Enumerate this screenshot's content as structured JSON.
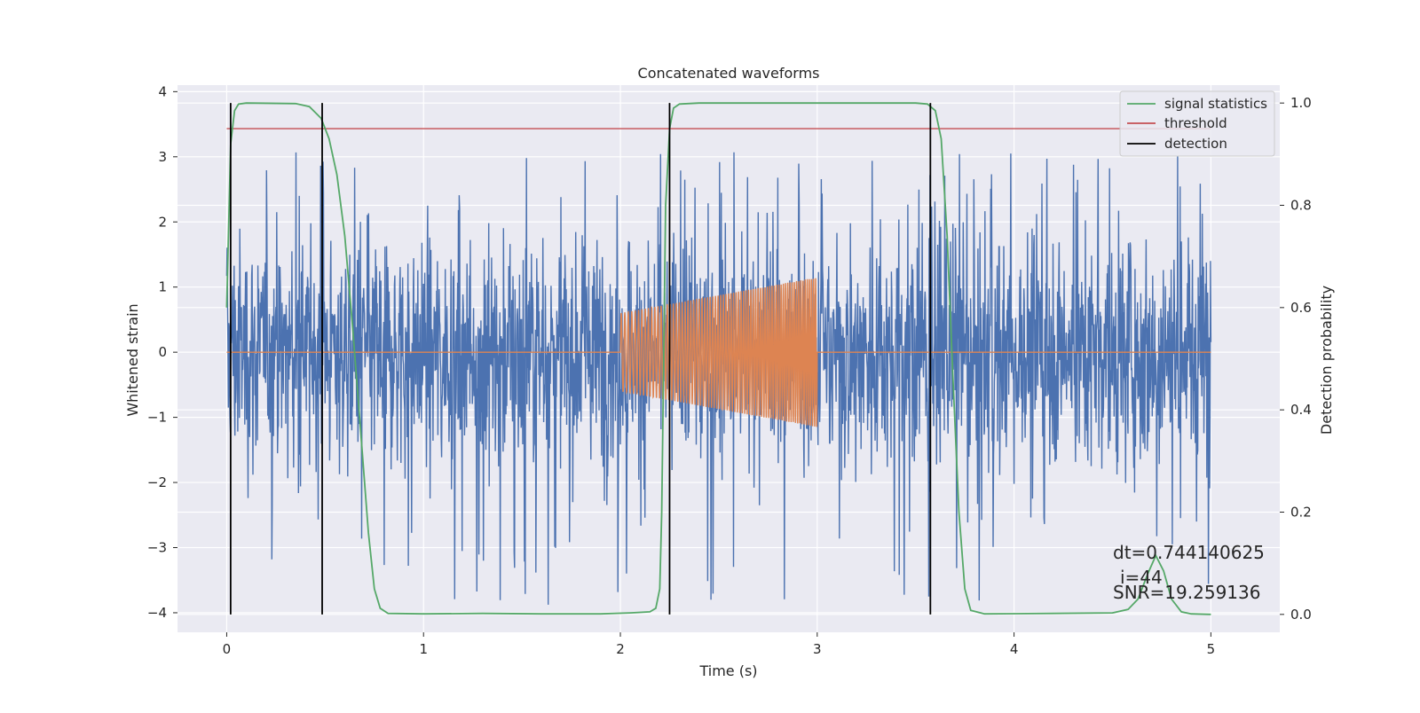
{
  "chart_data": {
    "type": "line",
    "title": "Concatenated waveforms",
    "xlabel": "Time (s)",
    "ylabel": "Whitened strain",
    "y2label": "Detection probability",
    "xlim": [
      -0.25,
      5.35
    ],
    "ylim": [
      -4.3,
      4.1
    ],
    "y2lim": [
      -0.035,
      1.035
    ],
    "x_ticks": [
      0,
      1,
      2,
      3,
      4,
      5
    ],
    "y_ticks": [
      -4,
      -3,
      -2,
      -1,
      0,
      1,
      2,
      3,
      4
    ],
    "y2_ticks": [
      0.0,
      0.2,
      0.4,
      0.6,
      0.8,
      1.0
    ],
    "x_tick_labels": [
      "0",
      "1",
      "2",
      "3",
      "4",
      "5"
    ],
    "y_tick_labels": [
      "−4",
      "−3",
      "−2",
      "−1",
      "0",
      "1",
      "2",
      "3",
      "4"
    ],
    "y2_tick_labels": [
      "0.0",
      "0.2",
      "0.4",
      "0.6",
      "0.8",
      "1.0"
    ],
    "grid": true,
    "legend_position": "top-right",
    "background_color": "#eaeaf2",
    "strain_series": [
      {
        "kind": "noise",
        "color": "#4c72b0",
        "x_range": [
          0,
          5
        ],
        "amplitude_typical": 1.1,
        "peak_min": -3.9,
        "peak_max": 3.1
      },
      {
        "kind": "chirp",
        "color": "#dd8452",
        "x_range": [
          0,
          5
        ],
        "active_range": [
          2.0,
          3.0
        ],
        "amplitude_start": 0.6,
        "amplitude_end": 1.15
      }
    ],
    "probability_series": [
      {
        "name": "signal statistics",
        "color": "#55a868",
        "points": [
          [
            0.0,
            0.6
          ],
          [
            0.02,
            0.92
          ],
          [
            0.04,
            0.985
          ],
          [
            0.06,
            0.998
          ],
          [
            0.1,
            1.0
          ],
          [
            0.35,
            0.999
          ],
          [
            0.42,
            0.993
          ],
          [
            0.48,
            0.97
          ],
          [
            0.52,
            0.93
          ],
          [
            0.56,
            0.86
          ],
          [
            0.6,
            0.74
          ],
          [
            0.64,
            0.56
          ],
          [
            0.68,
            0.36
          ],
          [
            0.72,
            0.16
          ],
          [
            0.75,
            0.05
          ],
          [
            0.78,
            0.012
          ],
          [
            0.82,
            0.002
          ],
          [
            1.0,
            0.001
          ],
          [
            1.3,
            0.002
          ],
          [
            1.6,
            0.001
          ],
          [
            1.9,
            0.001
          ],
          [
            2.05,
            0.003
          ],
          [
            2.15,
            0.005
          ],
          [
            2.18,
            0.012
          ],
          [
            2.2,
            0.05
          ],
          [
            2.21,
            0.2
          ],
          [
            2.22,
            0.5
          ],
          [
            2.23,
            0.8
          ],
          [
            2.25,
            0.95
          ],
          [
            2.27,
            0.99
          ],
          [
            2.3,
            0.998
          ],
          [
            2.4,
            1.0
          ],
          [
            3.5,
            1.0
          ],
          [
            3.56,
            0.998
          ],
          [
            3.6,
            0.985
          ],
          [
            3.63,
            0.93
          ],
          [
            3.66,
            0.74
          ],
          [
            3.69,
            0.46
          ],
          [
            3.72,
            0.2
          ],
          [
            3.75,
            0.05
          ],
          [
            3.78,
            0.008
          ],
          [
            3.85,
            0.001
          ],
          [
            4.2,
            0.002
          ],
          [
            4.5,
            0.003
          ],
          [
            4.58,
            0.01
          ],
          [
            4.63,
            0.03
          ],
          [
            4.68,
            0.08
          ],
          [
            4.72,
            0.115
          ],
          [
            4.76,
            0.085
          ],
          [
            4.8,
            0.03
          ],
          [
            4.85,
            0.005
          ],
          [
            4.9,
            0.001
          ],
          [
            5.0,
            0.0
          ]
        ]
      }
    ],
    "threshold": {
      "name": "threshold",
      "color": "#c44e52",
      "value": 0.95,
      "x_range": [
        0,
        5
      ]
    },
    "detections": {
      "name": "detection",
      "color": "#000000",
      "x": [
        0.02,
        0.485,
        2.25,
        3.575
      ],
      "y2_range": [
        0.0,
        1.0
      ]
    },
    "legend": [
      "signal statistics",
      "threshold",
      "detection"
    ],
    "annotations": [
      "dt=0.744140625",
      "i=44",
      "SNR=19.259136"
    ]
  }
}
